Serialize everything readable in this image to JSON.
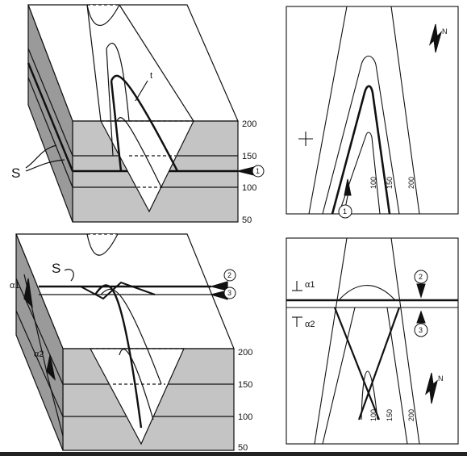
{
  "labels": {
    "s_top": "S",
    "t": "t",
    "s_bottom": "S",
    "alpha1_left": "α1",
    "alpha2_left": "α2",
    "alpha1_map": "α1",
    "alpha2_map": "α2",
    "north_top": "N",
    "north_bottom": "N",
    "plus": "+"
  },
  "depth_ticks_top": [
    "200",
    "150",
    "100",
    "50"
  ],
  "depth_ticks_bottom": [
    "200",
    "150",
    "100",
    "50"
  ],
  "map_contours_top": [
    "100",
    "150",
    "200"
  ],
  "map_contours_bottom": [
    "100",
    "150",
    "200"
  ],
  "markers": {
    "m1_block": "1",
    "m1_map": "1",
    "m2_block": "2",
    "m3_block": "3",
    "m2_map": "2",
    "m3_map": "3"
  },
  "colors": {
    "gray": "#c4c4c4",
    "darkgray": "#9a9a9a",
    "line": "#111111"
  }
}
